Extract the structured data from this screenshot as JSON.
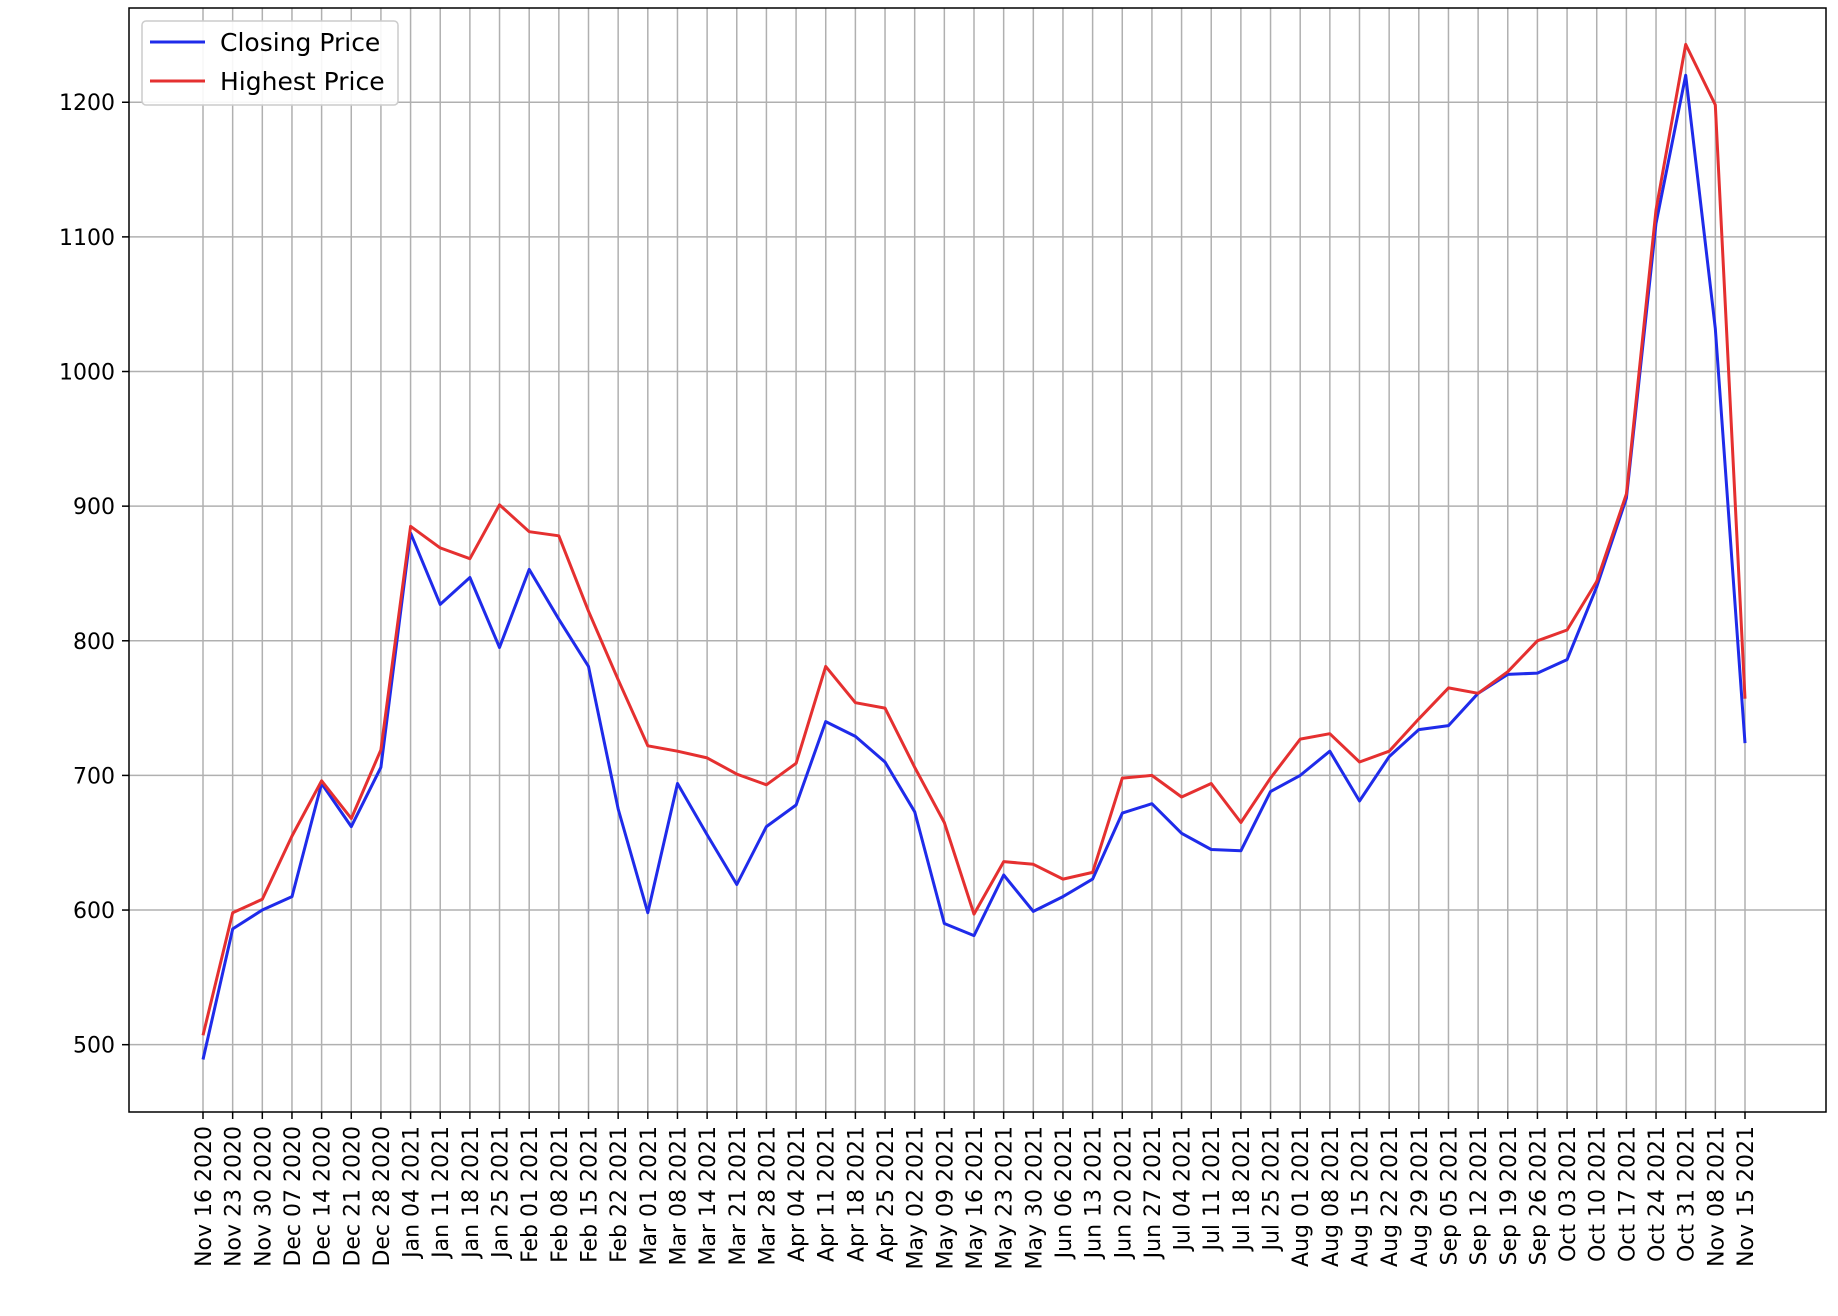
{
  "chart_data": {
    "type": "line",
    "title": "",
    "xlabel": "",
    "ylabel": "",
    "ylim": [
      450,
      1270
    ],
    "yticks": [
      500,
      600,
      700,
      800,
      900,
      1000,
      1100,
      1200
    ],
    "grid": true,
    "legend_position": "top-left",
    "x": [
      "Nov 16 2020",
      "Nov 23 2020",
      "Nov 30 2020",
      "Dec 07 2020",
      "Dec 14 2020",
      "Dec 21 2020",
      "Dec 28 2020",
      "Jan 04 2021",
      "Jan 11 2021",
      "Jan 18 2021",
      "Jan 25 2021",
      "Feb 01 2021",
      "Feb 08 2021",
      "Feb 15 2021",
      "Feb 22 2021",
      "Mar 01 2021",
      "Mar 08 2021",
      "Mar 14 2021",
      "Mar 21 2021",
      "Mar 28 2021",
      "Apr 04 2021",
      "Apr 11 2021",
      "Apr 18 2021",
      "Apr 25 2021",
      "May 02 2021",
      "May 09 2021",
      "May 16 2021",
      "May 23 2021",
      "May 30 2021",
      "Jun 06 2021",
      "Jun 13 2021",
      "Jun 20 2021",
      "Jun 27 2021",
      "Jul 04 2021",
      "Jul 11 2021",
      "Jul 18 2021",
      "Jul 25 2021",
      "Aug 01 2021",
      "Aug 08 2021",
      "Aug 15 2021",
      "Aug 22 2021",
      "Aug 29 2021",
      "Sep 05 2021",
      "Sep 12 2021",
      "Sep 19 2021",
      "Sep 26 2021",
      "Oct 03 2021",
      "Oct 10 2021",
      "Oct 17 2021",
      "Oct 24 2021",
      "Oct 31 2021",
      "Nov 08 2021",
      "Nov 15 2021"
    ],
    "series": [
      {
        "name": "Closing Price",
        "color": "#1f2bea",
        "values": [
          489,
          586,
          600,
          610,
          694,
          662,
          706,
          880,
          827,
          847,
          795,
          853,
          816,
          781,
          675,
          598,
          694,
          656,
          619,
          662,
          678,
          740,
          729,
          710,
          673,
          590,
          581,
          626,
          599,
          610,
          623,
          672,
          679,
          657,
          645,
          644,
          688,
          700,
          718,
          681,
          714,
          734,
          737,
          761,
          775,
          776,
          786,
          840,
          906,
          1110,
          1220,
          1032,
          724
        ]
      },
      {
        "name": "Highest Price",
        "color": "#e53030",
        "values": [
          507,
          598,
          608,
          655,
          696,
          668,
          719,
          885,
          869,
          861,
          901,
          881,
          878,
          822,
          771,
          722,
          718,
          713,
          701,
          693,
          709,
          781,
          754,
          750,
          706,
          665,
          597,
          636,
          634,
          623,
          628,
          698,
          700,
          684,
          694,
          665,
          698,
          727,
          731,
          710,
          718,
          742,
          765,
          761,
          777,
          800,
          808,
          844,
          909,
          1120,
          1243,
          1198,
          757
        ]
      }
    ]
  }
}
